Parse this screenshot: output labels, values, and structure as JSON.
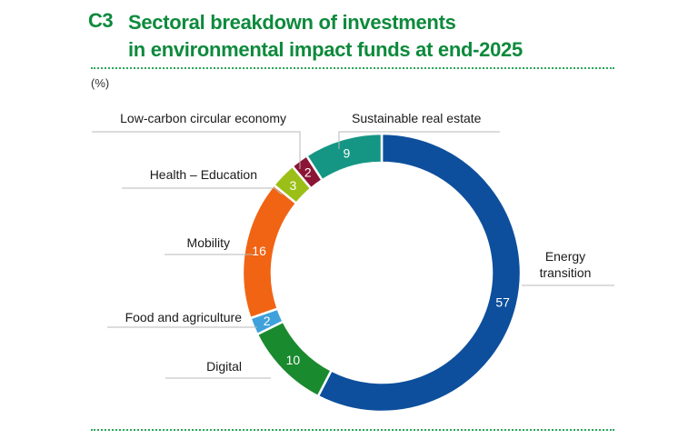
{
  "header": {
    "chart_id": "C3",
    "title_line1": "Sectoral breakdown of investments",
    "title_line2": "in environmental impact funds at end-2025"
  },
  "unit": "(%)",
  "colors": {
    "title": "#0d8a3c",
    "rule": "#2aa657",
    "energy_transition": "#0d4f9c",
    "digital": "#1a8a2e",
    "food_and_agriculture": "#3fa1dc",
    "mobility": "#f06414",
    "health_education": "#9cbf18",
    "low_carbon": "#8a1535",
    "sustainable_real_estate": "#159685"
  },
  "chart_data": {
    "type": "donut",
    "unit": "%",
    "start": "top, clockwise",
    "categories": [
      "Energy transition",
      "Digital",
      "Food and agriculture",
      "Mobility",
      "Health – Education",
      "Low-carbon circular economy",
      "Sustainable real estate"
    ],
    "values": [
      57,
      10,
      2,
      16,
      3,
      2,
      9
    ],
    "label_lines": [
      [
        "Energy",
        "transition"
      ],
      [
        "Digital"
      ],
      [
        "Food and agriculture"
      ],
      [
        "Mobility"
      ],
      [
        "Health – Education"
      ],
      [
        "Low-carbon circular economy"
      ],
      [
        "Sustainable real estate"
      ]
    ],
    "color_keys": [
      "energy_transition",
      "digital",
      "food_and_agriculture",
      "mobility",
      "health_education",
      "low_carbon",
      "sustainable_real_estate"
    ]
  }
}
